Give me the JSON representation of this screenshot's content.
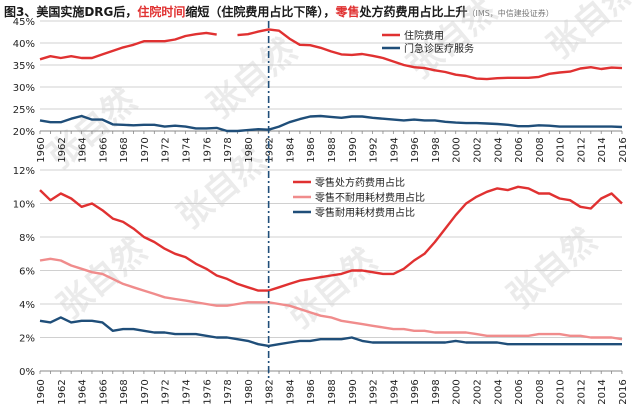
{
  "header": {
    "title_prefix": "图3、美国实施DRG后，",
    "title_red1": "住院时间",
    "title_mid": "缩短（住院费用占比下降），",
    "title_red2": "零售",
    "title_end": "处方药费用占比上升",
    "source": "（IMS，中信建投证券）"
  },
  "watermark": "张自然",
  "colors": {
    "inpatient": "#e03131",
    "outpatient": "#1f4e79",
    "retail_rx": "#e03131",
    "retail_nondurable": "#f08c8c",
    "retail_durable": "#1f4e79",
    "divider": "#1f4e79"
  },
  "chart_data": [
    {
      "type": "line",
      "x": [
        1960,
        1961,
        1962,
        1963,
        1964,
        1965,
        1966,
        1967,
        1968,
        1969,
        1970,
        1971,
        1972,
        1973,
        1974,
        1975,
        1976,
        1977,
        1978,
        1979,
        1980,
        1981,
        1982,
        1983,
        1984,
        1985,
        1986,
        1987,
        1988,
        1989,
        1990,
        1991,
        1992,
        1993,
        1994,
        1995,
        1996,
        1997,
        1998,
        1999,
        2000,
        2001,
        2002,
        2003,
        2004,
        2005,
        2006,
        2007,
        2008,
        2009,
        2010,
        2011,
        2012,
        2013,
        2014,
        2015,
        2016
      ],
      "xlim": [
        1960,
        2016
      ],
      "x_ticks": [
        "1960",
        "1962",
        "1964",
        "1966",
        "1968",
        "1970",
        "1972",
        "1974",
        "1976",
        "1978",
        "1980",
        "1982",
        "1984",
        "1986",
        "1988",
        "1990",
        "1992",
        "1994",
        "1996",
        "1998",
        "2000",
        "2002",
        "2004",
        "2006",
        "2008",
        "2010",
        "2012",
        "2014",
        "2016"
      ],
      "ylim": [
        20,
        45
      ],
      "y_ticks": [
        "20%",
        "25%",
        "30%",
        "35%",
        "40%",
        "45%"
      ],
      "legend_position": "top-right",
      "series": [
        {
          "name": "住院费用",
          "color": "#e03131",
          "values": [
            36.3,
            37.0,
            36.6,
            37.0,
            36.6,
            36.6,
            37.4,
            38.2,
            39.0,
            39.6,
            40.4,
            40.4,
            40.4,
            40.8,
            41.6,
            42.0,
            42.3,
            41.9,
            null,
            41.8,
            42.0,
            42.6,
            43.1,
            42.8,
            41.0,
            39.6,
            39.5,
            38.9,
            38.1,
            37.4,
            37.3,
            37.5,
            37.1,
            36.6,
            35.8,
            35.0,
            34.5,
            34.3,
            33.8,
            33.4,
            32.8,
            32.5,
            31.9,
            31.8,
            32.0,
            32.1,
            32.1,
            32.1,
            32.3,
            33.0,
            33.3,
            33.5,
            34.2,
            34.5,
            34.1,
            34.4,
            34.3
          ]
        },
        {
          "name": "门急诊医疗服务",
          "color": "#1f4e79",
          "values": [
            22.4,
            22.0,
            22.0,
            22.8,
            23.4,
            22.6,
            22.6,
            21.5,
            21.4,
            21.3,
            21.4,
            21.4,
            21.0,
            21.2,
            21.0,
            20.6,
            20.6,
            20.7,
            20.0,
            20.0,
            20.2,
            20.4,
            20.3,
            21.0,
            22.0,
            22.7,
            23.3,
            23.4,
            23.2,
            23.0,
            23.3,
            23.3,
            23.0,
            22.8,
            22.6,
            22.4,
            22.6,
            22.4,
            22.4,
            22.1,
            21.9,
            21.8,
            21.8,
            21.7,
            21.6,
            21.4,
            21.1,
            21.1,
            21.3,
            21.2,
            21.0,
            21.0,
            21.0,
            21.0,
            21.0,
            21.0,
            20.9
          ]
        }
      ]
    },
    {
      "type": "line",
      "x": [
        1960,
        1961,
        1962,
        1963,
        1964,
        1965,
        1966,
        1967,
        1968,
        1969,
        1970,
        1971,
        1972,
        1973,
        1974,
        1975,
        1976,
        1977,
        1978,
        1979,
        1980,
        1981,
        1982,
        1983,
        1984,
        1985,
        1986,
        1987,
        1988,
        1989,
        1990,
        1991,
        1992,
        1993,
        1994,
        1995,
        1996,
        1997,
        1998,
        1999,
        2000,
        2001,
        2002,
        2003,
        2004,
        2005,
        2006,
        2007,
        2008,
        2009,
        2010,
        2011,
        2012,
        2013,
        2014,
        2015,
        2016
      ],
      "xlim": [
        1960,
        2016
      ],
      "x_ticks": [
        "1960",
        "1962",
        "1964",
        "1966",
        "1968",
        "1970",
        "1972",
        "1974",
        "1976",
        "1978",
        "1980",
        "1982",
        "1984",
        "1986",
        "1988",
        "1990",
        "1992",
        "1994",
        "1996",
        "1998",
        "2000",
        "2002",
        "2004",
        "2006",
        "2008",
        "2010",
        "2012",
        "2014",
        "2016"
      ],
      "ylim": [
        0,
        12
      ],
      "y_ticks": [
        "0%",
        "2%",
        "4%",
        "6%",
        "8%",
        "10%",
        "12%"
      ],
      "legend_position": "top-center",
      "series": [
        {
          "name": "零售处方药费用占比",
          "color": "#e03131",
          "values": [
            10.8,
            10.2,
            10.6,
            10.3,
            9.8,
            10.0,
            9.6,
            9.1,
            8.9,
            8.5,
            8.0,
            7.7,
            7.3,
            7.0,
            6.8,
            6.4,
            6.1,
            5.7,
            5.5,
            5.2,
            5.0,
            4.8,
            4.8,
            5.0,
            5.2,
            5.4,
            5.5,
            5.6,
            5.7,
            5.8,
            6.0,
            6.0,
            5.9,
            5.8,
            5.8,
            6.1,
            6.6,
            7.0,
            7.7,
            8.5,
            9.3,
            10.0,
            10.4,
            10.7,
            10.9,
            10.8,
            11.0,
            10.9,
            10.6,
            10.6,
            10.3,
            10.2,
            9.8,
            9.7,
            10.3,
            10.6,
            10.0
          ]
        },
        {
          "name": "零售不耐用耗材费用占比",
          "color": "#f08c8c",
          "values": [
            6.6,
            6.7,
            6.6,
            6.3,
            6.1,
            5.9,
            5.8,
            5.5,
            5.2,
            5.0,
            4.8,
            4.6,
            4.4,
            4.3,
            4.2,
            4.1,
            4.0,
            3.9,
            3.9,
            4.0,
            4.1,
            4.1,
            4.1,
            4.0,
            3.9,
            3.7,
            3.5,
            3.3,
            3.2,
            3.0,
            2.9,
            2.8,
            2.7,
            2.6,
            2.5,
            2.5,
            2.4,
            2.4,
            2.3,
            2.3,
            2.3,
            2.3,
            2.2,
            2.1,
            2.1,
            2.1,
            2.1,
            2.1,
            2.2,
            2.2,
            2.2,
            2.1,
            2.1,
            2.0,
            2.0,
            2.0,
            1.9
          ]
        },
        {
          "name": "零售耐用耗材费用占比",
          "color": "#1f4e79",
          "values": [
            3.0,
            2.9,
            3.2,
            2.9,
            3.0,
            3.0,
            2.9,
            2.4,
            2.5,
            2.5,
            2.4,
            2.3,
            2.3,
            2.2,
            2.2,
            2.2,
            2.1,
            2.0,
            2.0,
            1.9,
            1.8,
            1.6,
            1.5,
            1.6,
            1.7,
            1.8,
            1.8,
            1.9,
            1.9,
            1.9,
            2.0,
            1.8,
            1.7,
            1.7,
            1.7,
            1.7,
            1.7,
            1.7,
            1.7,
            1.7,
            1.8,
            1.7,
            1.7,
            1.7,
            1.7,
            1.6,
            1.6,
            1.6,
            1.6,
            1.6,
            1.6,
            1.6,
            1.6,
            1.6,
            1.6,
            1.6,
            1.6
          ]
        }
      ]
    }
  ]
}
